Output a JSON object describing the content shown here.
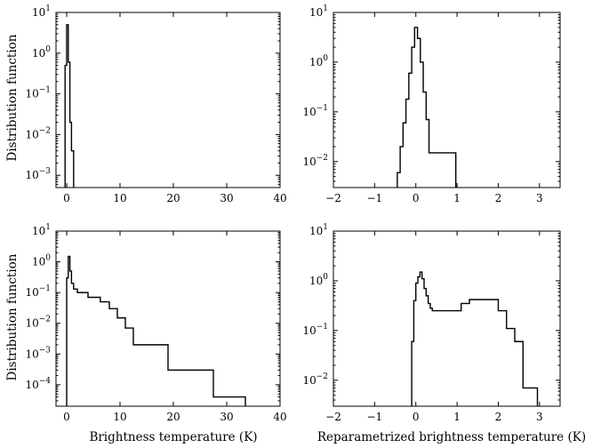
{
  "figure": {
    "ylabel": "Distribution function",
    "xlabel_left": "Brightness temperature (K)",
    "xlabel_right": "Reparametrized brightness temperature (K)"
  },
  "chart_data": [
    {
      "type": "histogram",
      "panel": "top-left",
      "xscale": "linear",
      "yscale": "log",
      "xlim": [
        -2,
        40
      ],
      "ylim": [
        0.0005,
        10
      ],
      "xticks": [
        0,
        10,
        20,
        30,
        40
      ],
      "yticks": [
        0.001,
        0.01,
        0.1,
        1,
        10
      ],
      "ytick_labels": [
        "10^-3",
        "10^-2",
        "10^-1",
        "10^0",
        "10^1"
      ],
      "bins": [
        {
          "x0": -0.3,
          "x1": 0.0,
          "y": 0.5
        },
        {
          "x0": 0.0,
          "x1": 0.3,
          "y": 5.0
        },
        {
          "x0": 0.3,
          "x1": 0.6,
          "y": 0.6
        },
        {
          "x0": 0.6,
          "x1": 0.9,
          "y": 0.02
        },
        {
          "x0": 0.9,
          "x1": 1.3,
          "y": 0.004
        }
      ]
    },
    {
      "type": "histogram",
      "panel": "top-right",
      "xscale": "linear",
      "yscale": "log",
      "xlim": [
        -2,
        3.5
      ],
      "ylim": [
        0.003,
        10
      ],
      "xticks": [
        -2,
        -1,
        0,
        1,
        2,
        3
      ],
      "yticks": [
        0.01,
        0.1,
        1,
        10
      ],
      "ytick_labels": [
        "10^-2",
        "10^-1",
        "10^0",
        "10^1"
      ],
      "bins": [
        {
          "x0": -0.45,
          "x1": -0.38,
          "y": 0.006
        },
        {
          "x0": -0.38,
          "x1": -0.31,
          "y": 0.02
        },
        {
          "x0": -0.31,
          "x1": -0.24,
          "y": 0.06
        },
        {
          "x0": -0.24,
          "x1": -0.17,
          "y": 0.18
        },
        {
          "x0": -0.17,
          "x1": -0.1,
          "y": 0.6
        },
        {
          "x0": -0.1,
          "x1": -0.03,
          "y": 2.0
        },
        {
          "x0": -0.03,
          "x1": 0.04,
          "y": 5.0
        },
        {
          "x0": 0.04,
          "x1": 0.11,
          "y": 3.0
        },
        {
          "x0": 0.11,
          "x1": 0.18,
          "y": 1.0
        },
        {
          "x0": 0.18,
          "x1": 0.25,
          "y": 0.25
        },
        {
          "x0": 0.25,
          "x1": 0.32,
          "y": 0.07
        },
        {
          "x0": 0.32,
          "x1": 0.97,
          "y": 0.015
        }
      ]
    },
    {
      "type": "histogram",
      "panel": "bottom-left",
      "xscale": "linear",
      "yscale": "log",
      "xlim": [
        -2,
        40
      ],
      "ylim": [
        2e-05,
        10
      ],
      "xticks": [
        0,
        10,
        20,
        30,
        40
      ],
      "yticks": [
        0.0001,
        0.001,
        0.01,
        0.1,
        1,
        10
      ],
      "ytick_labels": [
        "10^-4",
        "10^-3",
        "10^-2",
        "10^-1",
        "10^0",
        "10^1"
      ],
      "bins": [
        {
          "x0": 0.0,
          "x1": 0.3,
          "y": 0.3
        },
        {
          "x0": 0.3,
          "x1": 0.6,
          "y": 1.5
        },
        {
          "x0": 0.6,
          "x1": 0.9,
          "y": 0.5
        },
        {
          "x0": 0.9,
          "x1": 1.3,
          "y": 0.2
        },
        {
          "x0": 1.3,
          "x1": 2.0,
          "y": 0.13
        },
        {
          "x0": 2.0,
          "x1": 4.0,
          "y": 0.1
        },
        {
          "x0": 4.0,
          "x1": 6.3,
          "y": 0.07
        },
        {
          "x0": 6.3,
          "x1": 8.0,
          "y": 0.05
        },
        {
          "x0": 8.0,
          "x1": 9.5,
          "y": 0.03
        },
        {
          "x0": 9.5,
          "x1": 11.0,
          "y": 0.015
        },
        {
          "x0": 11.0,
          "x1": 12.5,
          "y": 0.007
        },
        {
          "x0": 12.5,
          "x1": 19.0,
          "y": 0.002
        },
        {
          "x0": 19.0,
          "x1": 27.5,
          "y": 0.0003
        },
        {
          "x0": 27.5,
          "x1": 33.5,
          "y": 4e-05
        }
      ]
    },
    {
      "type": "histogram",
      "panel": "bottom-right",
      "xscale": "linear",
      "yscale": "log",
      "xlim": [
        -2,
        3.5
      ],
      "ylim": [
        0.003,
        10
      ],
      "xticks": [
        -2,
        -1,
        0,
        1,
        2,
        3
      ],
      "yticks": [
        0.01,
        0.1,
        1,
        10
      ],
      "ytick_labels": [
        "10^-2",
        "10^-1",
        "10^0",
        "10^1"
      ],
      "bins": [
        {
          "x0": -0.1,
          "x1": -0.05,
          "y": 0.06
        },
        {
          "x0": -0.05,
          "x1": 0.0,
          "y": 0.4
        },
        {
          "x0": 0.0,
          "x1": 0.05,
          "y": 0.9
        },
        {
          "x0": 0.05,
          "x1": 0.1,
          "y": 1.2
        },
        {
          "x0": 0.1,
          "x1": 0.15,
          "y": 1.5
        },
        {
          "x0": 0.15,
          "x1": 0.2,
          "y": 1.1
        },
        {
          "x0": 0.2,
          "x1": 0.25,
          "y": 0.7
        },
        {
          "x0": 0.25,
          "x1": 0.3,
          "y": 0.5
        },
        {
          "x0": 0.3,
          "x1": 0.35,
          "y": 0.35
        },
        {
          "x0": 0.35,
          "x1": 0.4,
          "y": 0.28
        },
        {
          "x0": 0.4,
          "x1": 1.1,
          "y": 0.25
        },
        {
          "x0": 1.1,
          "x1": 1.3,
          "y": 0.35
        },
        {
          "x0": 1.3,
          "x1": 2.0,
          "y": 0.42
        },
        {
          "x0": 2.0,
          "x1": 2.2,
          "y": 0.25
        },
        {
          "x0": 2.2,
          "x1": 2.4,
          "y": 0.11
        },
        {
          "x0": 2.4,
          "x1": 2.6,
          "y": 0.06
        },
        {
          "x0": 2.6,
          "x1": 2.95,
          "y": 0.007
        }
      ]
    }
  ]
}
